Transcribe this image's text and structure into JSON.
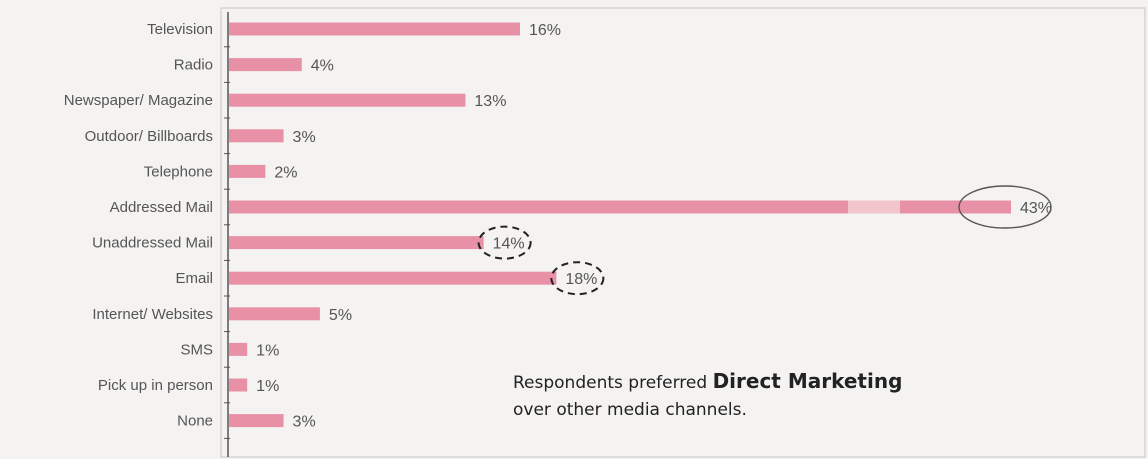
{
  "chart_data": {
    "type": "bar",
    "orientation": "horizontal",
    "categories": [
      "Television",
      "Radio",
      "Newspaper/ Magazine",
      "Outdoor/ Billboards",
      "Telephone",
      "Addressed Mail",
      "Unaddressed Mail",
      "Email",
      "Internet/ Websites",
      "SMS",
      "Pick up in person",
      "None"
    ],
    "values": [
      16,
      4,
      13,
      3,
      2,
      43,
      14,
      18,
      5,
      1,
      1,
      3
    ],
    "value_labels": [
      "16%",
      "4%",
      "13%",
      "3%",
      "2%",
      "43%",
      "14%",
      "18%",
      "5%",
      "1%",
      "1%",
      "3%"
    ],
    "xlim": [
      0,
      50
    ],
    "highlighted": {
      "solid_circle": "Addressed Mail",
      "dashed_circles": [
        "Unaddressed Mail",
        "Email"
      ]
    },
    "bar_color": "#e890a6",
    "grid": false
  },
  "note": {
    "prefix": "Respondents preferred ",
    "bold": "Direct Marketing",
    "line2": "over other media channels."
  },
  "colors": {
    "background": "#f4f3f1",
    "bar": "#e890a6",
    "axis": "#555555"
  }
}
